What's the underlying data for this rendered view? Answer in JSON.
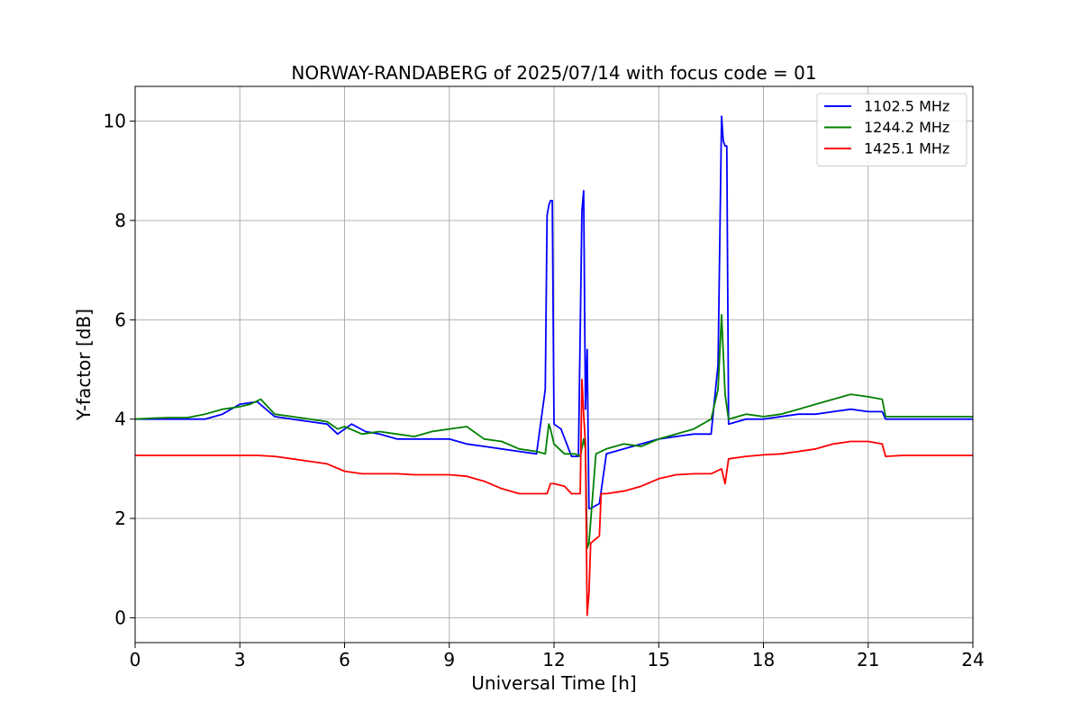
{
  "chart_data": {
    "type": "line",
    "title": "NORWAY-RANDABERG of 2025/07/14 with focus code = 01",
    "xlabel": "Universal Time [h]",
    "ylabel": "Y-factor [dB]",
    "xlim": [
      0,
      24
    ],
    "ylim": [
      -0.5,
      10.7
    ],
    "xticks": [
      0,
      3,
      6,
      9,
      12,
      15,
      18,
      21,
      24
    ],
    "yticks": [
      0,
      2,
      4,
      6,
      8,
      10
    ],
    "grid": true,
    "legend_position": "top-right",
    "series": [
      {
        "name": "1102.5 MHz",
        "color": "#0000ff",
        "x": [
          0,
          0.5,
          1.0,
          1.5,
          2.0,
          2.5,
          3.0,
          3.5,
          4.0,
          4.5,
          5.0,
          5.5,
          5.8,
          6.2,
          6.6,
          7.0,
          7.5,
          8.0,
          8.5,
          9.0,
          9.5,
          10.0,
          10.5,
          11.0,
          11.5,
          11.75,
          11.8,
          11.85,
          11.9,
          11.95,
          12.0,
          12.2,
          12.5,
          12.7,
          12.8,
          12.85,
          12.9,
          12.95,
          13.0,
          13.05,
          13.3,
          13.5,
          14.0,
          14.5,
          15.0,
          15.5,
          16.0,
          16.5,
          16.7,
          16.8,
          16.85,
          16.9,
          16.95,
          17.0,
          17.5,
          18.0,
          18.5,
          19.0,
          19.5,
          20.0,
          20.5,
          21.0,
          21.4,
          21.5,
          22.0,
          22.5,
          23.0,
          23.5,
          24.0
        ],
        "y": [
          4.0,
          4.0,
          4.0,
          4.0,
          4.0,
          4.1,
          4.3,
          4.35,
          4.05,
          4.0,
          3.95,
          3.9,
          3.7,
          3.9,
          3.75,
          3.7,
          3.6,
          3.6,
          3.6,
          3.6,
          3.5,
          3.45,
          3.4,
          3.35,
          3.3,
          4.6,
          8.1,
          8.3,
          8.4,
          8.4,
          3.9,
          3.8,
          3.25,
          3.25,
          8.2,
          8.6,
          4.2,
          5.4,
          2.2,
          2.2,
          2.3,
          3.3,
          3.4,
          3.5,
          3.6,
          3.65,
          3.7,
          3.7,
          5.1,
          10.1,
          9.6,
          9.5,
          9.5,
          3.9,
          4.0,
          4.0,
          4.05,
          4.1,
          4.1,
          4.15,
          4.2,
          4.15,
          4.15,
          4.0,
          4.0,
          4.0,
          4.0,
          4.0,
          4.0
        ]
      },
      {
        "name": "1244.2 MHz",
        "color": "#008000",
        "x": [
          0,
          0.5,
          1.0,
          1.5,
          2.0,
          2.5,
          3.0,
          3.3,
          3.6,
          4.0,
          4.5,
          5.0,
          5.5,
          5.8,
          6.0,
          6.5,
          7.0,
          7.5,
          8.0,
          8.5,
          9.0,
          9.5,
          10.0,
          10.5,
          11.0,
          11.5,
          11.75,
          11.85,
          11.9,
          12.0,
          12.3,
          12.6,
          12.75,
          12.85,
          12.9,
          12.95,
          13.0,
          13.2,
          13.5,
          14.0,
          14.5,
          15.0,
          15.5,
          16.0,
          16.5,
          16.7,
          16.8,
          16.9,
          17.0,
          17.5,
          18.0,
          18.5,
          19.0,
          19.5,
          20.0,
          20.5,
          21.0,
          21.4,
          21.5,
          22.0,
          22.5,
          23.0,
          23.5,
          24.0
        ],
        "y": [
          4.0,
          4.02,
          4.03,
          4.03,
          4.1,
          4.2,
          4.25,
          4.3,
          4.4,
          4.1,
          4.05,
          4.0,
          3.95,
          3.8,
          3.85,
          3.7,
          3.75,
          3.7,
          3.65,
          3.75,
          3.8,
          3.85,
          3.6,
          3.55,
          3.4,
          3.35,
          3.3,
          3.9,
          3.8,
          3.5,
          3.3,
          3.3,
          3.25,
          3.6,
          3.4,
          1.4,
          1.5,
          3.3,
          3.4,
          3.5,
          3.45,
          3.6,
          3.7,
          3.8,
          4.0,
          4.6,
          6.1,
          4.5,
          4.0,
          4.1,
          4.05,
          4.1,
          4.2,
          4.3,
          4.4,
          4.5,
          4.45,
          4.4,
          4.05,
          4.05,
          4.05,
          4.05,
          4.05,
          4.05
        ]
      },
      {
        "name": "1425.1 MHz",
        "color": "#ff0000",
        "x": [
          0,
          0.5,
          1.0,
          1.5,
          2.0,
          2.5,
          3.0,
          3.5,
          4.0,
          4.5,
          5.0,
          5.5,
          6.0,
          6.5,
          7.0,
          7.5,
          8.0,
          8.5,
          9.0,
          9.5,
          10.0,
          10.5,
          11.0,
          11.5,
          11.8,
          11.9,
          12.0,
          12.3,
          12.5,
          12.75,
          12.8,
          12.85,
          12.9,
          12.95,
          13.0,
          13.05,
          13.3,
          13.35,
          13.5,
          14.0,
          14.5,
          15.0,
          15.5,
          16.0,
          16.5,
          16.8,
          16.9,
          17.0,
          17.5,
          18.0,
          18.5,
          19.0,
          19.5,
          20.0,
          20.5,
          21.0,
          21.4,
          21.5,
          22.0,
          22.5,
          23.0,
          23.5,
          24.0
        ],
        "y": [
          3.27,
          3.27,
          3.27,
          3.27,
          3.27,
          3.27,
          3.27,
          3.27,
          3.25,
          3.2,
          3.15,
          3.1,
          2.95,
          2.9,
          2.9,
          2.9,
          2.88,
          2.88,
          2.88,
          2.85,
          2.75,
          2.6,
          2.5,
          2.5,
          2.5,
          2.7,
          2.7,
          2.65,
          2.5,
          2.5,
          4.8,
          4.1,
          3.5,
          0.05,
          0.5,
          1.5,
          1.65,
          2.5,
          2.5,
          2.55,
          2.65,
          2.8,
          2.88,
          2.9,
          2.9,
          3.0,
          2.7,
          3.2,
          3.25,
          3.28,
          3.3,
          3.35,
          3.4,
          3.5,
          3.55,
          3.55,
          3.5,
          3.25,
          3.27,
          3.27,
          3.27,
          3.27,
          3.27
        ]
      }
    ]
  }
}
